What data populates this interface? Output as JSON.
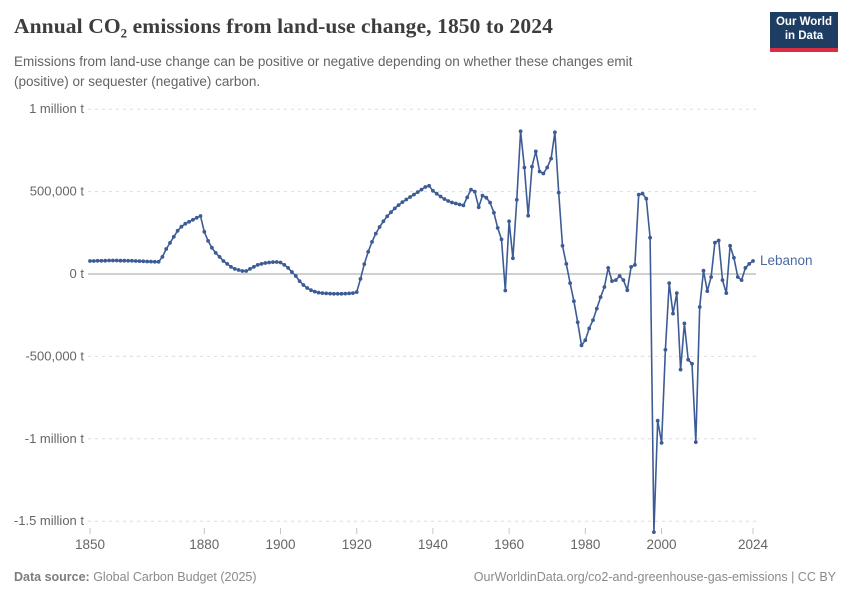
{
  "header": {
    "title": "Annual CO₂ emissions from land-use change, 1850 to 2024",
    "subtitle": "Emissions from land-use change can be positive or negative depending on whether these changes emit (positive) or sequester (negative) carbon.",
    "logo": {
      "line1": "Our World",
      "line2": "in Data",
      "bg_color": "#1d3d63",
      "accent_color": "#da2c43"
    }
  },
  "footer": {
    "datasource_label": "Data source:",
    "datasource_value": " Global Carbon Budget (2025)",
    "credit": "OurWorldinData.org/co2-and-greenhouse-gas-emissions | CC BY"
  },
  "chart_data": {
    "type": "line",
    "title": "Annual CO₂ emissions from land-use change, 1850 to 2024",
    "unit": "t",
    "grid": "horizontal-dashed",
    "legend_position": "end-of-line-label",
    "xlim": [
      1850,
      2024
    ],
    "ylim": [
      -1500000,
      1000000
    ],
    "x_start_year": 1850,
    "x_end_year": 2024,
    "x_ticks": [
      1850,
      1880,
      1900,
      1920,
      1940,
      1960,
      1980,
      2000,
      2024
    ],
    "y_ticks": [
      {
        "value": 1000000,
        "label": "1 million t"
      },
      {
        "value": 500000,
        "label": "500,000 t"
      },
      {
        "value": 0,
        "label": "0 t"
      },
      {
        "value": -500000,
        "label": "-500,000 t"
      },
      {
        "value": -1000000,
        "label": "-1 million t"
      },
      {
        "value": -1500000,
        "label": "-1.5 million t"
      }
    ],
    "series": [
      {
        "name": "Lebanon",
        "color": "#3d5c96",
        "label_color": "#4c6a9f",
        "values": [
          79000,
          79000,
          80000,
          80000,
          81000,
          82000,
          82000,
          82000,
          81000,
          81000,
          80000,
          80000,
          79000,
          78000,
          77000,
          76000,
          75000,
          74000,
          74000,
          104000,
          152000,
          189000,
          226000,
          262000,
          287000,
          305000,
          317000,
          329000,
          341000,
          352000,
          256000,
          201000,
          159000,
          128000,
          104000,
          79000,
          61000,
          43000,
          31000,
          24000,
          18000,
          18000,
          31000,
          43000,
          55000,
          61000,
          67000,
          70000,
          72000,
          73000,
          70000,
          55000,
          37000,
          12000,
          -12000,
          -43000,
          -67000,
          -85000,
          -98000,
          -107000,
          -113000,
          -116000,
          -118000,
          -119000,
          -120000,
          -120000,
          -120000,
          -119000,
          -118000,
          -116000,
          -110000,
          -30000,
          60000,
          135000,
          195000,
          245000,
          285000,
          320000,
          350000,
          375000,
          398000,
          418000,
          436000,
          452000,
          467000,
          482000,
          497000,
          512000,
          528000,
          535000,
          505000,
          487000,
          470000,
          455000,
          443000,
          434000,
          428000,
          422000,
          416000,
          465000,
          512000,
          500000,
          405000,
          476000,
          463000,
          433000,
          372000,
          280000,
          210000,
          -100000,
          320000,
          95000,
          450000,
          866000,
          646000,
          354000,
          652000,
          744000,
          622000,
          610000,
          646000,
          700000,
          860000,
          494000,
          171000,
          61000,
          -55000,
          -165000,
          -293000,
          -433000,
          -402000,
          -330000,
          -280000,
          -210000,
          -140000,
          -79000,
          37000,
          -43000,
          -37000,
          -12000,
          -37000,
          -98000,
          43000,
          55000,
          482000,
          488000,
          457000,
          220000,
          -1566000,
          -890000,
          -1025000,
          -460000,
          -55000,
          -240000,
          -116000,
          -580000,
          -300000,
          -520000,
          -545000,
          -1020000,
          -200000,
          20000,
          -104000,
          -18000,
          190000,
          203000,
          -37000,
          -116000,
          171000,
          98000,
          -18000,
          -37000,
          37000,
          61000,
          79000
        ]
      }
    ]
  }
}
